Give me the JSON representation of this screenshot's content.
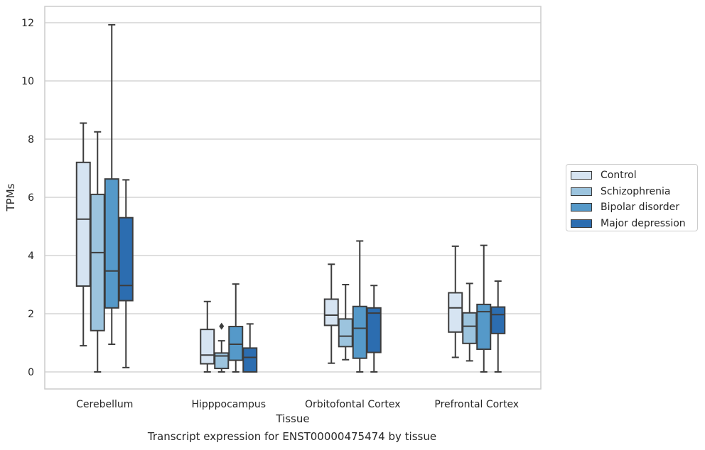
{
  "chart_data": {
    "type": "box",
    "title": "",
    "caption": "Transcript expression for ENST00000475474 by tissue",
    "xlabel": "Tissue",
    "ylabel": "TPMs",
    "ylim": [
      -0.58,
      12.55
    ],
    "yticks": [
      0,
      2,
      4,
      6,
      8,
      10,
      12
    ],
    "grid": "horizontal",
    "legend_position": "right",
    "categories": [
      "Cerebellum",
      "Hipppocampus",
      "Orbitofontal Cortex",
      "Prefrontal Cortex"
    ],
    "series": [
      {
        "name": "Control",
        "color": "#d6e4f2",
        "boxes": [
          {
            "whislo": 0.9,
            "q1": 2.95,
            "med": 5.25,
            "q3": 7.2,
            "whishi": 8.55,
            "fliers": []
          },
          {
            "whislo": 0.0,
            "q1": 0.28,
            "med": 0.58,
            "q3": 1.46,
            "whishi": 2.42,
            "fliers": []
          },
          {
            "whislo": 0.3,
            "q1": 1.6,
            "med": 1.95,
            "q3": 2.5,
            "whishi": 3.7,
            "fliers": []
          },
          {
            "whislo": 0.5,
            "q1": 1.37,
            "med": 2.2,
            "q3": 2.72,
            "whishi": 4.32,
            "fliers": []
          }
        ]
      },
      {
        "name": "Schizophrenia",
        "color": "#9cc4de",
        "boxes": [
          {
            "whislo": 0.0,
            "q1": 1.42,
            "med": 4.1,
            "q3": 6.1,
            "whishi": 8.25,
            "fliers": []
          },
          {
            "whislo": 0.0,
            "q1": 0.12,
            "med": 0.55,
            "q3": 0.65,
            "whishi": 1.07,
            "fliers": [
              1.57
            ]
          },
          {
            "whislo": 0.42,
            "q1": 0.87,
            "med": 1.23,
            "q3": 1.82,
            "whishi": 3.0,
            "fliers": []
          },
          {
            "whislo": 0.38,
            "q1": 0.98,
            "med": 1.57,
            "q3": 2.03,
            "whishi": 3.04,
            "fliers": []
          }
        ]
      },
      {
        "name": "Bipolar disorder",
        "color": "#5599c9",
        "boxes": [
          {
            "whislo": 0.95,
            "q1": 2.2,
            "med": 3.47,
            "q3": 6.63,
            "whishi": 11.93,
            "fliers": []
          },
          {
            "whislo": 0.0,
            "q1": 0.4,
            "med": 0.95,
            "q3": 1.56,
            "whishi": 3.02,
            "fliers": []
          },
          {
            "whislo": 0.0,
            "q1": 0.47,
            "med": 1.5,
            "q3": 2.25,
            "whishi": 4.5,
            "fliers": []
          },
          {
            "whislo": 0.0,
            "q1": 0.78,
            "med": 2.07,
            "q3": 2.32,
            "whishi": 4.35,
            "fliers": []
          }
        ]
      },
      {
        "name": "Major depression",
        "color": "#2c6db0",
        "boxes": [
          {
            "whislo": 0.15,
            "q1": 2.45,
            "med": 2.97,
            "q3": 5.3,
            "whishi": 6.6,
            "fliers": []
          },
          {
            "whislo": 0.0,
            "q1": 0.0,
            "med": 0.5,
            "q3": 0.82,
            "whishi": 1.65,
            "fliers": []
          },
          {
            "whislo": 0.0,
            "q1": 0.67,
            "med": 2.02,
            "q3": 2.2,
            "whishi": 2.97,
            "fliers": []
          },
          {
            "whislo": 0.0,
            "q1": 1.32,
            "med": 1.97,
            "q3": 2.23,
            "whishi": 3.12,
            "fliers": []
          }
        ]
      }
    ]
  }
}
